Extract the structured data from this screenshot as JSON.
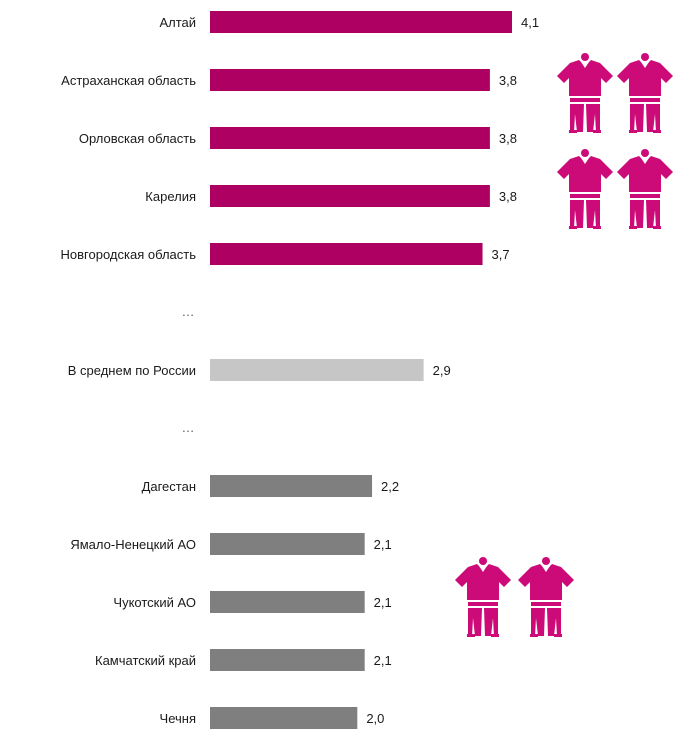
{
  "chart_data": {
    "type": "bar",
    "orientation": "horizontal",
    "categories": [
      "Алтай",
      "Астраханская область",
      "Орловская область",
      "Карелия",
      "Новгородская область",
      "…",
      "В среднем по России",
      "…",
      "Дагестан",
      "Ямало-Ненецкий АО",
      "Чукотский АО",
      "Камчатский край",
      "Чечня"
    ],
    "values": [
      4.1,
      3.8,
      3.8,
      3.8,
      3.7,
      null,
      2.9,
      null,
      2.2,
      2.1,
      2.1,
      2.1,
      2.0
    ],
    "value_labels": [
      "4,1",
      "3,8",
      "3,8",
      "3,8",
      "3,7",
      "",
      "2,9",
      "",
      "2,2",
      "2,1",
      "2,1",
      "2,1",
      "2,0"
    ],
    "bar_groups": [
      "top",
      "top",
      "top",
      "top",
      "top",
      "gap",
      "average",
      "gap",
      "bottom",
      "bottom",
      "bottom",
      "bottom",
      "bottom"
    ],
    "xlim": [
      0,
      4.1
    ],
    "grid": false,
    "legend": "none",
    "colors": {
      "top": "#ad0062",
      "average": "#c6c6c6",
      "bottom": "#7f7f7f",
      "icon": "#cc0a78"
    },
    "icons": [
      {
        "name": "person-icon",
        "group": "top"
      },
      {
        "name": "person-icon",
        "group": "top"
      },
      {
        "name": "person-icon",
        "group": "top"
      },
      {
        "name": "person-icon",
        "group": "top"
      },
      {
        "name": "person-icon",
        "group": "bottom"
      },
      {
        "name": "person-icon",
        "group": "bottom"
      }
    ]
  }
}
